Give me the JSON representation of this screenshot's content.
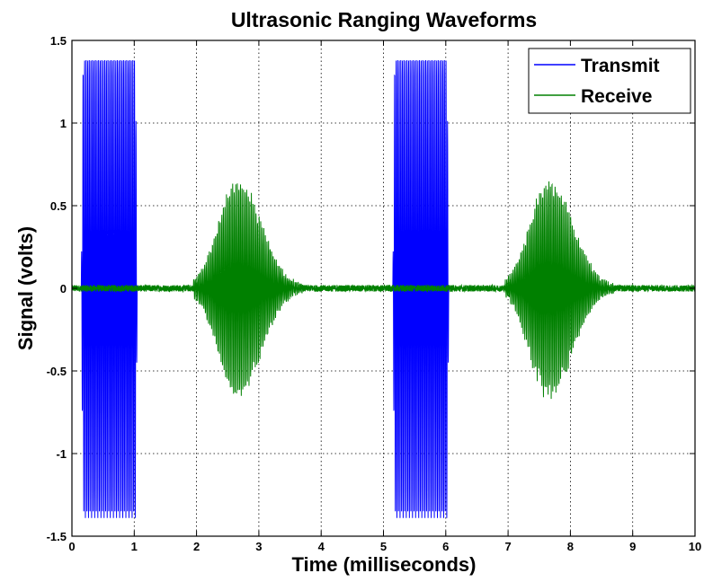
{
  "chart_data": {
    "type": "line",
    "title": "Ultrasonic Ranging Waveforms",
    "xlabel": "Time (milliseconds)",
    "ylabel": "Signal (volts)",
    "xlim": [
      0,
      10
    ],
    "ylim": [
      -1.5,
      1.5
    ],
    "x_ticks": [
      "0",
      "1",
      "2",
      "3",
      "4",
      "5",
      "6",
      "7",
      "8",
      "9",
      "10"
    ],
    "y_ticks": [
      "-1.5",
      "-1",
      "-0.5",
      "0",
      "0.5",
      "1",
      "1.5"
    ],
    "grid": true,
    "legend_position": "top-right",
    "series": [
      {
        "name": "Transmit",
        "color": "#0000ff",
        "bursts": [
          {
            "start": 0.15,
            "end": 1.05,
            "amplitude": 1.39
          },
          {
            "start": 5.15,
            "end": 6.05,
            "amplitude": 1.39
          }
        ],
        "carrier_frequency_cycles_per_ms": 40
      },
      {
        "name": "Receive",
        "color": "#008000",
        "bursts": [
          {
            "start": 1.95,
            "end": 3.7,
            "peak_time": 2.65,
            "amplitude": 0.68
          },
          {
            "start": 6.95,
            "end": 8.7,
            "peak_time": 7.65,
            "amplitude": 0.68
          }
        ],
        "noise_level": 0.02,
        "carrier_frequency_cycles_per_ms": 40
      }
    ]
  }
}
